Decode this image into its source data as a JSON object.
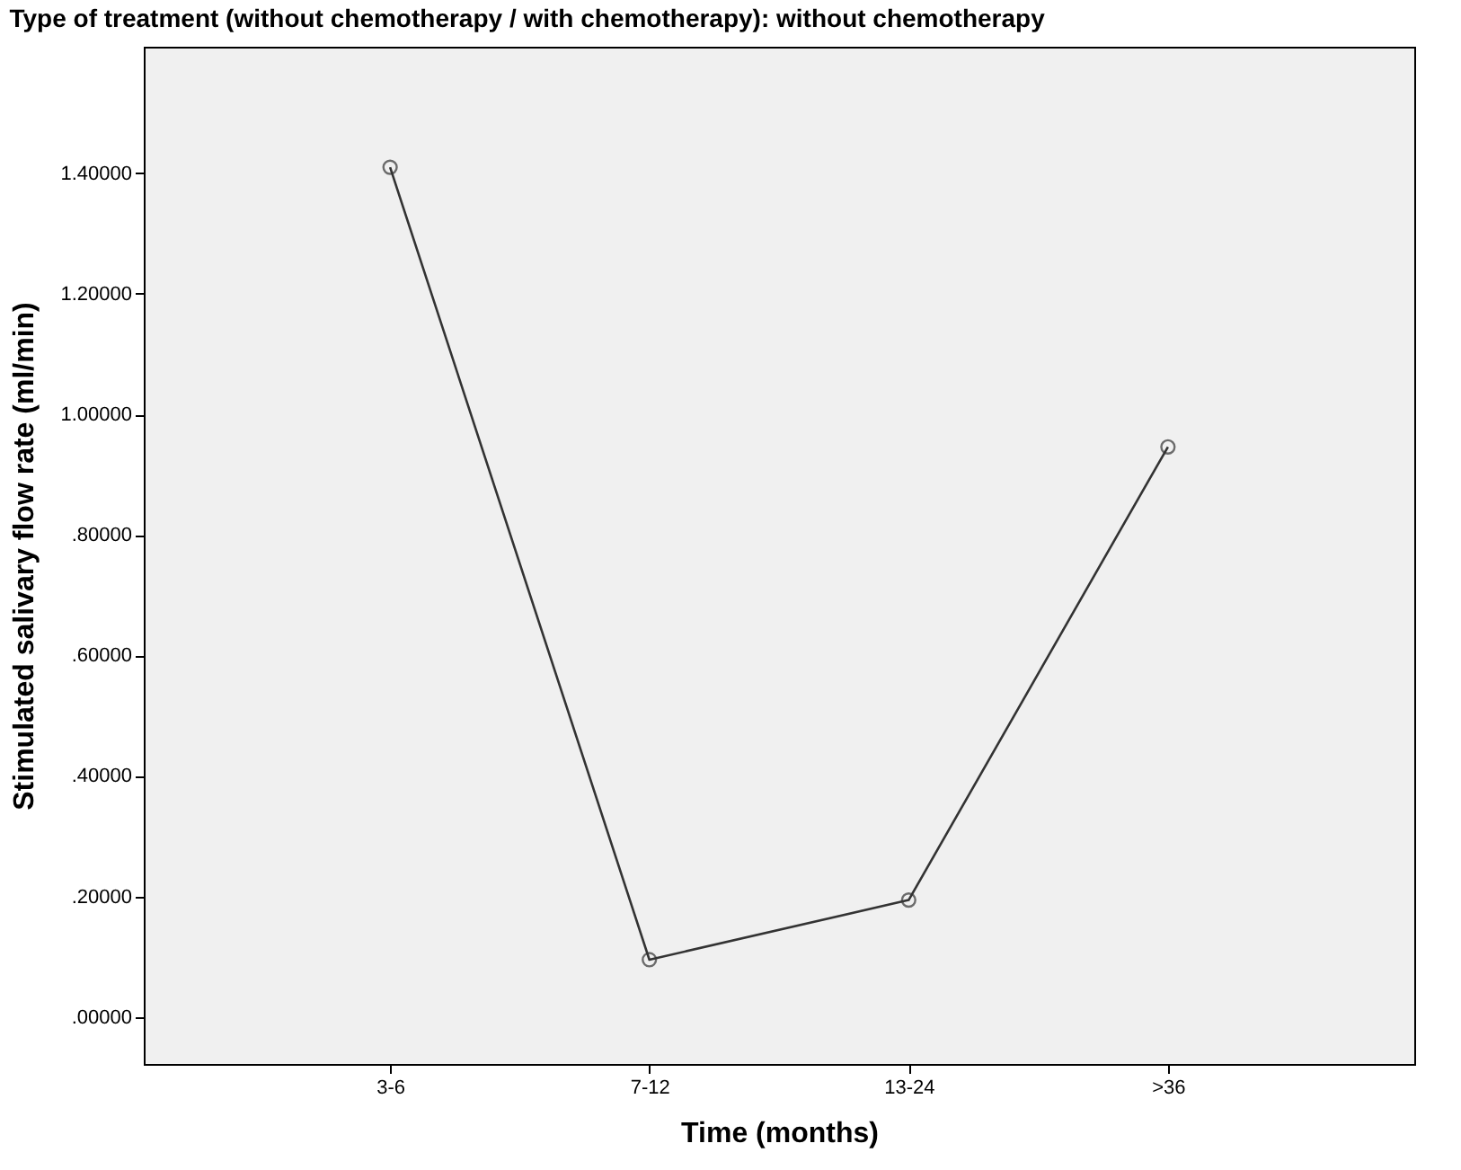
{
  "chart_data": {
    "type": "line",
    "title": "Type of treatment (without chemotherapy / with chemotherapy): without chemotherapy",
    "xlabel": "Time (months)",
    "ylabel": "Stimulated salivary flow rate (ml/min)",
    "categories": [
      "3-6",
      "7-12",
      "13-24",
      ">36"
    ],
    "series": [
      {
        "color": "#333333",
        "values": [
          1.41,
          0.095,
          0.194,
          0.946
        ]
      }
    ],
    "ylim": [
      -0.078,
      1.61
    ],
    "yticks": [
      {
        "value": 0,
        "label": ".00000"
      },
      {
        "value": 0.2,
        "label": ".20000"
      },
      {
        "value": 0.4,
        "label": ".40000"
      },
      {
        "value": 0.6,
        "label": ".60000"
      },
      {
        "value": 0.8,
        "label": ".80000"
      },
      {
        "value": 1.0,
        "label": "1.00000"
      },
      {
        "value": 1.2,
        "label": "1.20000"
      },
      {
        "value": 1.4,
        "label": "1.40000"
      }
    ],
    "grid": false,
    "legend": false,
    "marker": "circle",
    "line_style": "solid"
  }
}
